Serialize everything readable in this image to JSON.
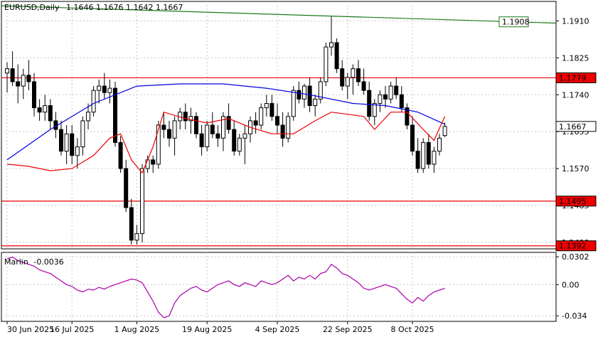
{
  "chart_data": [
    {
      "type": "candlestick",
      "title": "EURUSD,Daily",
      "ohlc_label": "1.1646 1.1676 1.1642 1.1667",
      "ylim": [
        1.1385,
        1.1955
      ],
      "y_ticks": [
        "1.1910",
        "1.1825",
        "1.1740",
        "1.1655",
        "1.1570",
        "1.1485",
        "1.1400"
      ],
      "x_ticks": [
        "30 Jun 2025",
        "16 Jul 2025",
        "1 Aug 2025",
        "19 Aug 2025",
        "4 Sep 2025",
        "22 Sep 2025",
        "8 Oct 2025"
      ],
      "grid": true,
      "price_labels": [
        {
          "text": "1.1908",
          "value": 1.1908,
          "color": "#1a7a1a"
        },
        {
          "text": "1.1779",
          "value": 1.1779,
          "color": "#ee0000"
        },
        {
          "text": "1.1667",
          "value": 1.1667,
          "color": "#000000"
        },
        {
          "text": "1.1495",
          "value": 1.1495,
          "color": "#ee0000"
        },
        {
          "text": "1.1392",
          "value": 1.1392,
          "color": "#ee0000"
        }
      ],
      "horizontal_levels": [
        1.1779,
        1.1495,
        1.1392
      ],
      "trendline": {
        "from": 1.1945,
        "to": 1.1905,
        "color": "#1a7a1a"
      },
      "colors": {
        "bull": "#ffffff",
        "bear": "#000000",
        "ma_slow": "#0000dd",
        "ma_fast": "#ee0000",
        "level": "#ee0000",
        "trend": "#1a7a1a"
      },
      "candles": [
        [
          1.179,
          1.1815,
          1.1745,
          1.18
        ],
        [
          1.18,
          1.184,
          1.176,
          1.177
        ],
        [
          1.177,
          1.181,
          1.172,
          1.176
        ],
        [
          1.176,
          1.18,
          1.173,
          1.1785
        ],
        [
          1.1785,
          1.182,
          1.175,
          1.177
        ],
        [
          1.177,
          1.179,
          1.169,
          1.171
        ],
        [
          1.171,
          1.173,
          1.168,
          1.17
        ],
        [
          1.17,
          1.174,
          1.168,
          1.1715
        ],
        [
          1.1715,
          1.173,
          1.166,
          1.168
        ],
        [
          1.168,
          1.17,
          1.164,
          1.166
        ],
        [
          1.166,
          1.168,
          1.16,
          1.161
        ],
        [
          1.161,
          1.167,
          1.158,
          1.165
        ],
        [
          1.165,
          1.167,
          1.158,
          1.16
        ],
        [
          1.16,
          1.164,
          1.157,
          1.162
        ],
        [
          1.162,
          1.169,
          1.16,
          1.168
        ],
        [
          1.168,
          1.172,
          1.166,
          1.17
        ],
        [
          1.17,
          1.176,
          1.169,
          1.175
        ],
        [
          1.175,
          1.1775,
          1.172,
          1.176
        ],
        [
          1.176,
          1.179,
          1.173,
          1.1745
        ],
        [
          1.1745,
          1.1775,
          1.172,
          1.1755
        ],
        [
          1.1755,
          1.177,
          1.162,
          1.163
        ],
        [
          1.163,
          1.1645,
          1.156,
          1.157
        ],
        [
          1.157,
          1.159,
          1.147,
          1.148
        ],
        [
          1.148,
          1.15,
          1.1395,
          1.1405
        ],
        [
          1.1405,
          1.144,
          1.1395,
          1.142
        ],
        [
          1.142,
          1.158,
          1.14,
          1.157
        ],
        [
          1.157,
          1.16,
          1.156,
          1.159
        ],
        [
          1.159,
          1.16,
          1.156,
          1.158
        ],
        [
          1.158,
          1.168,
          1.157,
          1.167
        ],
        [
          1.167,
          1.17,
          1.164,
          1.166
        ],
        [
          1.166,
          1.168,
          1.162,
          1.164
        ],
        [
          1.164,
          1.169,
          1.16,
          1.168
        ],
        [
          1.168,
          1.171,
          1.166,
          1.17
        ],
        [
          1.17,
          1.172,
          1.166,
          1.168
        ],
        [
          1.168,
          1.171,
          1.165,
          1.169
        ],
        [
          1.169,
          1.17,
          1.164,
          1.165
        ],
        [
          1.165,
          1.167,
          1.16,
          1.162
        ],
        [
          1.162,
          1.168,
          1.161,
          1.167
        ],
        [
          1.167,
          1.17,
          1.164,
          1.165
        ],
        [
          1.165,
          1.167,
          1.162,
          1.164
        ],
        [
          1.164,
          1.17,
          1.161,
          1.169
        ],
        [
          1.169,
          1.172,
          1.165,
          1.166
        ],
        [
          1.166,
          1.168,
          1.16,
          1.161
        ],
        [
          1.161,
          1.165,
          1.16,
          1.164
        ],
        [
          1.164,
          1.167,
          1.158,
          1.165
        ],
        [
          1.165,
          1.169,
          1.163,
          1.168
        ],
        [
          1.168,
          1.17,
          1.165,
          1.167
        ],
        [
          1.167,
          1.172,
          1.166,
          1.171
        ],
        [
          1.171,
          1.174,
          1.169,
          1.172
        ],
        [
          1.172,
          1.174,
          1.168,
          1.169
        ],
        [
          1.169,
          1.172,
          1.165,
          1.167
        ],
        [
          1.167,
          1.17,
          1.162,
          1.164
        ],
        [
          1.164,
          1.17,
          1.163,
          1.169
        ],
        [
          1.169,
          1.176,
          1.168,
          1.175
        ],
        [
          1.175,
          1.177,
          1.172,
          1.173
        ],
        [
          1.173,
          1.1765,
          1.171,
          1.176
        ],
        [
          1.176,
          1.178,
          1.17,
          1.1715
        ],
        [
          1.1715,
          1.174,
          1.169,
          1.173
        ],
        [
          1.173,
          1.178,
          1.172,
          1.177
        ],
        [
          1.177,
          1.186,
          1.176,
          1.185
        ],
        [
          1.185,
          1.192,
          1.183,
          1.186
        ],
        [
          1.186,
          1.187,
          1.179,
          1.18
        ],
        [
          1.18,
          1.182,
          1.175,
          1.176
        ],
        [
          1.176,
          1.179,
          1.173,
          1.178
        ],
        [
          1.178,
          1.181,
          1.174,
          1.18
        ],
        [
          1.18,
          1.182,
          1.176,
          1.177
        ],
        [
          1.177,
          1.18,
          1.174,
          1.175
        ],
        [
          1.175,
          1.177,
          1.168,
          1.169
        ],
        [
          1.169,
          1.173,
          1.167,
          1.172
        ],
        [
          1.172,
          1.175,
          1.17,
          1.174
        ],
        [
          1.174,
          1.176,
          1.171,
          1.173
        ],
        [
          1.173,
          1.177,
          1.172,
          1.176
        ],
        [
          1.176,
          1.178,
          1.173,
          1.174
        ],
        [
          1.174,
          1.176,
          1.17,
          1.171
        ],
        [
          1.171,
          1.172,
          1.166,
          1.167
        ],
        [
          1.167,
          1.169,
          1.16,
          1.161
        ],
        [
          1.161,
          1.164,
          1.156,
          1.157
        ],
        [
          1.157,
          1.164,
          1.156,
          1.163
        ],
        [
          1.163,
          1.165,
          1.157,
          1.158
        ],
        [
          1.158,
          1.162,
          1.156,
          1.161
        ],
        [
          1.161,
          1.165,
          1.16,
          1.164
        ],
        [
          1.1646,
          1.1676,
          1.1642,
          1.1667
        ]
      ],
      "ma_slow": [
        [
          0,
          1.159
        ],
        [
          8,
          1.166
        ],
        [
          16,
          1.172
        ],
        [
          24,
          1.176
        ],
        [
          32,
          1.1765
        ],
        [
          40,
          1.1765
        ],
        [
          48,
          1.1755
        ],
        [
          56,
          1.174
        ],
        [
          64,
          1.172
        ],
        [
          70,
          1.1715
        ],
        [
          76,
          1.17
        ],
        [
          81,
          1.1672
        ]
      ],
      "ma_fast": [
        [
          0,
          1.158
        ],
        [
          4,
          1.1575
        ],
        [
          8,
          1.1565
        ],
        [
          12,
          1.157
        ],
        [
          16,
          1.16
        ],
        [
          19,
          1.164
        ],
        [
          21,
          1.165
        ],
        [
          23,
          1.159
        ],
        [
          25,
          1.156
        ],
        [
          27,
          1.162
        ],
        [
          29,
          1.17
        ],
        [
          33,
          1.1685
        ],
        [
          37,
          1.1675
        ],
        [
          41,
          1.1685
        ],
        [
          45,
          1.1665
        ],
        [
          49,
          1.165
        ],
        [
          53,
          1.165
        ],
        [
          57,
          1.168
        ],
        [
          60,
          1.17
        ],
        [
          63,
          1.1695
        ],
        [
          66,
          1.169
        ],
        [
          68,
          1.166
        ],
        [
          71,
          1.17
        ],
        [
          74,
          1.17
        ],
        [
          77,
          1.166
        ],
        [
          79,
          1.1635
        ],
        [
          81,
          1.169
        ]
      ]
    },
    {
      "type": "line",
      "title": "Marlin",
      "value_label": "-0.0036",
      "ylim": [
        -0.04,
        0.035
      ],
      "y_ticks": [
        "0.0302",
        "0.00",
        "-0.034"
      ],
      "color": "#aa00aa",
      "values": [
        0.028,
        0.03,
        0.026,
        0.024,
        0.022,
        0.02,
        0.016,
        0.014,
        0.012,
        0.008,
        0.004,
        0.0,
        -0.002,
        -0.006,
        -0.008,
        -0.005,
        -0.006,
        -0.003,
        -0.005,
        -0.002,
        0.0,
        0.002,
        0.004,
        0.006,
        0.005,
        0.002,
        -0.008,
        -0.018,
        -0.03,
        -0.036,
        -0.034,
        -0.02,
        -0.012,
        -0.008,
        -0.004,
        -0.002,
        -0.006,
        -0.008,
        -0.004,
        0.0,
        0.002,
        0.004,
        0.0,
        -0.002,
        0.002,
        0.0,
        -0.002,
        0.004,
        0.002,
        0.0,
        0.002,
        0.006,
        0.01,
        0.004,
        0.008,
        0.006,
        0.01,
        0.006,
        0.012,
        0.014,
        0.022,
        0.018,
        0.012,
        0.01,
        0.006,
        0.002,
        -0.004,
        -0.006,
        -0.004,
        -0.002,
        0.0,
        -0.002,
        -0.004,
        -0.01,
        -0.016,
        -0.02,
        -0.014,
        -0.018,
        -0.012,
        -0.008,
        -0.006,
        -0.004
      ]
    }
  ]
}
